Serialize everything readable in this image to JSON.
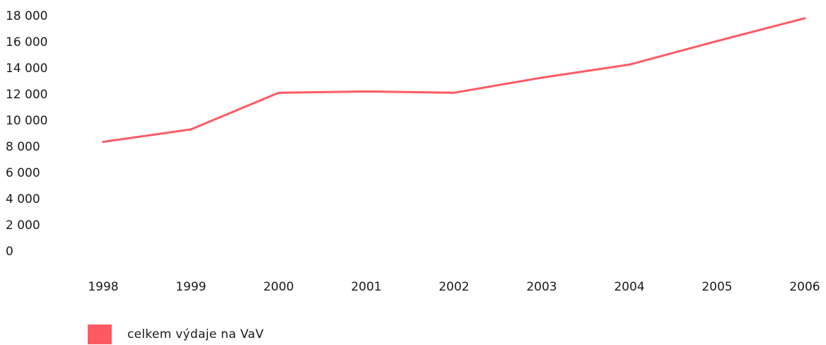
{
  "chart_data": {
    "type": "line",
    "title": "",
    "xlabel": "",
    "ylabel": "",
    "categories": [
      "1998",
      "1999",
      "2000",
      "2001",
      "2002",
      "2003",
      "2004",
      "2005",
      "2006"
    ],
    "series": [
      {
        "name": "celkem výdaje na VaV",
        "values": [
          8400,
          9350,
          12150,
          12250,
          12150,
          13300,
          14300,
          16100,
          17850
        ],
        "color": "#ff5a63"
      }
    ],
    "ylim": [
      0,
      18000
    ],
    "yticks": [
      0,
      2000,
      4000,
      6000,
      8000,
      10000,
      12000,
      14000,
      16000,
      18000
    ],
    "ytick_labels": [
      "0",
      "2 000",
      "4 000",
      "6 000",
      "8 000",
      "10 000",
      "12 000",
      "14 000",
      "16 000",
      "18 000"
    ],
    "grid": false,
    "legend_position": "bottom-left"
  }
}
